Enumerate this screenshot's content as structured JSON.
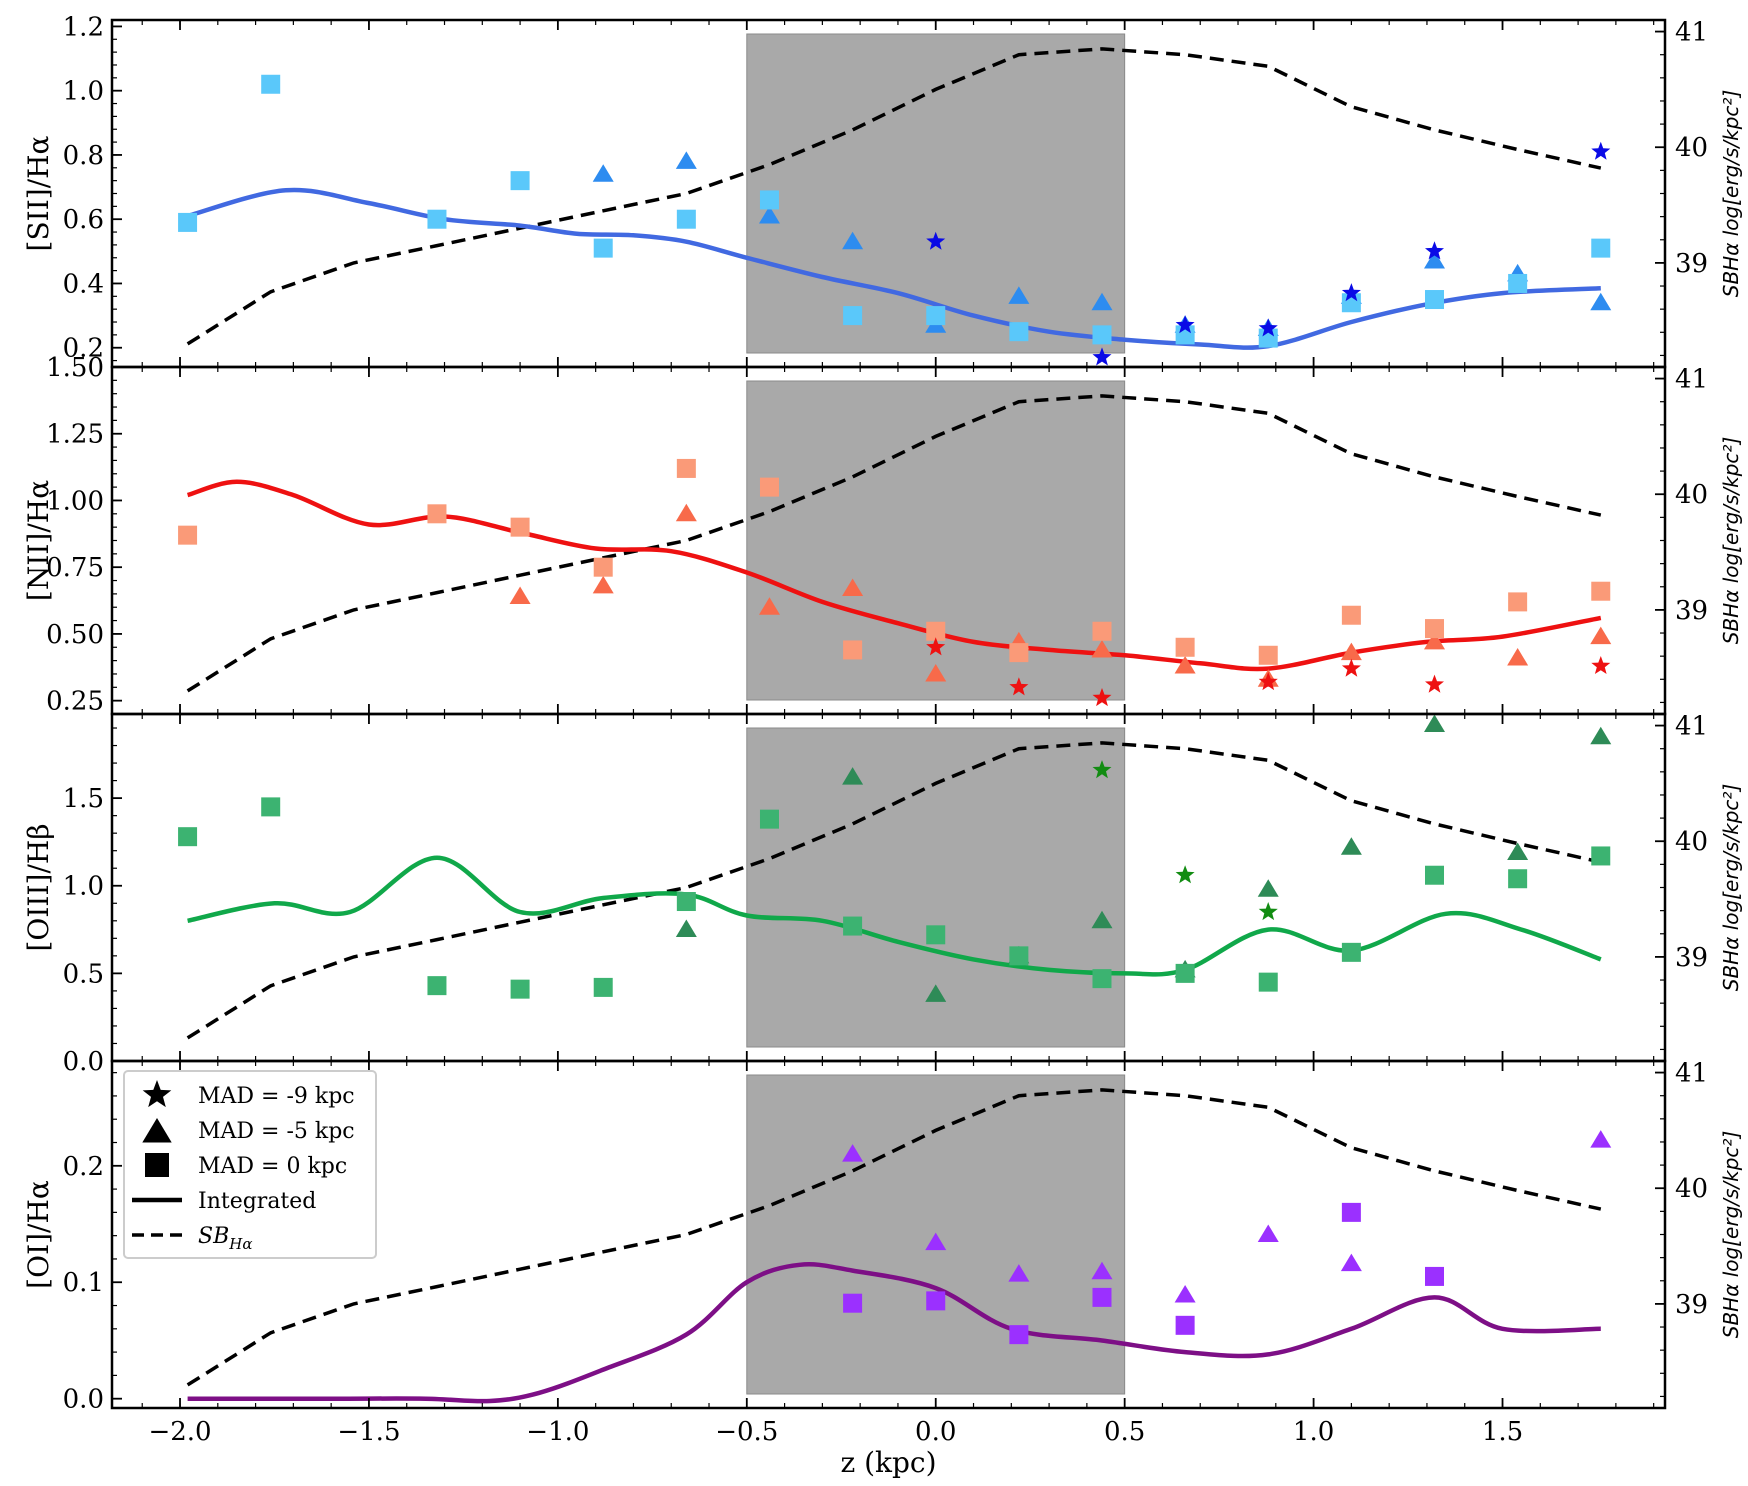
{
  "chart_data": {
    "type": "scatter",
    "xlabel": "z (kpc)",
    "xlim": [
      -2.18,
      1.93
    ],
    "x_ticks": [
      "−2.0",
      "−1.5",
      "−1.0",
      "−0.5",
      "0.0",
      "0.5",
      "1.0",
      "1.5"
    ],
    "x_tick_values": [
      -2.0,
      -1.5,
      -1.0,
      -0.5,
      0.0,
      0.5,
      1.0,
      1.5
    ],
    "shaded_region": [
      -0.5,
      0.5
    ],
    "right_axis": {
      "label": "SBHα log[erg/s/kpc²]",
      "ylim": [
        38.1,
        41.1
      ],
      "ticks": [
        "41",
        "40",
        "39"
      ],
      "tick_values": [
        41,
        40,
        39
      ]
    },
    "sb_halpha": {
      "x": [
        -1.98,
        -1.76,
        -1.54,
        -1.32,
        -1.1,
        -0.88,
        -0.66,
        -0.44,
        -0.22,
        0.0,
        0.22,
        0.44,
        0.66,
        0.88,
        1.1,
        1.32,
        1.54,
        1.76
      ],
      "y": [
        38.3,
        38.75,
        39.0,
        39.15,
        39.3,
        39.45,
        39.6,
        39.85,
        40.15,
        40.5,
        40.8,
        40.85,
        40.8,
        40.7,
        40.35,
        40.15,
        39.98,
        39.82
      ]
    },
    "legend": {
      "entries": [
        "MAD = -9 kpc",
        "MAD = -5 kpc",
        "MAD = 0 kpc",
        "Integrated",
        "SB"
      ],
      "entries_sub": [
        "",
        "",
        "",
        "",
        "Hα"
      ]
    },
    "panels": [
      {
        "ylabel": "[SII]/Hα",
        "ylim": [
          0.14,
          1.22
        ],
        "y_ticks": [
          "0.2",
          "0.4",
          "0.6",
          "0.8",
          "1.0",
          "1.2"
        ],
        "y_tick_values": [
          0.2,
          0.4,
          0.6,
          0.8,
          1.0,
          1.2
        ],
        "color_line": "#4169e1",
        "color_square": "#5ac8fa",
        "color_triangle": "#2d8cf0",
        "color_star": "#0a0ae6",
        "integrated": {
          "x": [
            -1.98,
            -1.72,
            -1.5,
            -1.3,
            -1.1,
            -0.95,
            -0.8,
            -0.66,
            -0.5,
            -0.3,
            -0.1,
            0.1,
            0.3,
            0.5,
            0.7,
            0.88,
            1.1,
            1.3,
            1.5,
            1.76
          ],
          "y": [
            0.61,
            0.69,
            0.65,
            0.6,
            0.58,
            0.555,
            0.55,
            0.53,
            0.48,
            0.42,
            0.37,
            0.3,
            0.25,
            0.225,
            0.21,
            0.205,
            0.28,
            0.335,
            0.37,
            0.385
          ]
        },
        "mad0_squares": {
          "x": [
            -1.98,
            -1.76,
            -1.32,
            -1.1,
            -0.88,
            -0.66,
            -0.44,
            -0.22,
            0.0,
            0.22,
            0.44,
            0.66,
            0.88,
            1.1,
            1.32,
            1.54,
            1.76
          ],
          "y": [
            0.59,
            1.02,
            0.6,
            0.72,
            0.51,
            0.6,
            0.66,
            0.3,
            0.3,
            0.25,
            0.24,
            0.24,
            0.23,
            0.34,
            0.35,
            0.4,
            0.51
          ]
        },
        "mad5_triangles": {
          "x": [
            -0.88,
            -0.66,
            -0.44,
            -0.22,
            0.0,
            0.22,
            0.44,
            0.66,
            0.88,
            1.1,
            1.32,
            1.54,
            1.76
          ],
          "y": [
            0.74,
            0.78,
            0.61,
            0.53,
            0.27,
            0.36,
            0.34,
            0.27,
            0.26,
            0.36,
            0.47,
            0.43,
            0.34
          ]
        },
        "mad9_stars": {
          "x": [
            0.0,
            0.44,
            0.66,
            0.88,
            1.1,
            1.32,
            1.76
          ],
          "y": [
            0.53,
            0.17,
            0.27,
            0.26,
            0.37,
            0.5,
            0.81
          ]
        }
      },
      {
        "ylabel": "[NII]/Hα",
        "ylim": [
          0.2,
          1.5
        ],
        "y_ticks": [
          "0.25",
          "0.50",
          "0.75",
          "1.00",
          "1.25",
          "1.50"
        ],
        "y_tick_values": [
          0.25,
          0.5,
          0.75,
          1.0,
          1.25,
          1.5
        ],
        "color_line": "#ee1111",
        "color_square": "#fa9a78",
        "color_triangle": "#f86a4a",
        "color_star": "#ee1111",
        "integrated": {
          "x": [
            -1.98,
            -1.85,
            -1.7,
            -1.5,
            -1.3,
            -1.1,
            -0.9,
            -0.7,
            -0.5,
            -0.3,
            -0.1,
            0.1,
            0.3,
            0.5,
            0.7,
            0.88,
            1.1,
            1.3,
            1.5,
            1.76
          ],
          "y": [
            1.02,
            1.07,
            1.02,
            0.91,
            0.94,
            0.88,
            0.82,
            0.81,
            0.73,
            0.62,
            0.54,
            0.47,
            0.44,
            0.42,
            0.39,
            0.37,
            0.43,
            0.47,
            0.49,
            0.56
          ]
        },
        "mad0_squares": {
          "x": [
            -1.98,
            -1.32,
            -1.1,
            -0.88,
            -0.66,
            -0.44,
            -0.22,
            0.0,
            0.22,
            0.44,
            0.66,
            0.88,
            1.1,
            1.32,
            1.54,
            1.76
          ],
          "y": [
            0.87,
            0.95,
            0.9,
            0.75,
            1.12,
            1.05,
            0.44,
            0.51,
            0.43,
            0.51,
            0.45,
            0.42,
            0.57,
            0.52,
            0.62,
            0.66
          ]
        },
        "mad5_triangles": {
          "x": [
            -1.1,
            -0.88,
            -0.66,
            -0.44,
            -0.22,
            0.0,
            0.22,
            0.44,
            0.66,
            0.88,
            1.1,
            1.32,
            1.54,
            1.76
          ],
          "y": [
            0.64,
            0.68,
            0.95,
            0.6,
            0.67,
            0.35,
            0.47,
            0.44,
            0.38,
            0.33,
            0.43,
            0.47,
            0.41,
            0.49
          ]
        },
        "mad9_stars": {
          "x": [
            0.0,
            0.22,
            0.44,
            0.88,
            1.1,
            1.32,
            1.76
          ],
          "y": [
            0.45,
            0.3,
            0.26,
            0.32,
            0.37,
            0.31,
            0.38
          ]
        }
      },
      {
        "ylabel": "[OIII]/Hβ",
        "ylim": [
          0.0,
          1.98
        ],
        "y_ticks": [
          "0.0",
          "0.5",
          "1.0",
          "1.5"
        ],
        "y_tick_values": [
          0.0,
          0.5,
          1.0,
          1.5
        ],
        "color_line": "#10a84a",
        "color_square": "#3cb371",
        "color_triangle": "#2e8b57",
        "color_star": "#128c12",
        "integrated": {
          "x": [
            -1.98,
            -1.75,
            -1.55,
            -1.32,
            -1.1,
            -0.88,
            -0.66,
            -0.5,
            -0.3,
            -0.1,
            0.1,
            0.3,
            0.5,
            0.66,
            0.88,
            1.1,
            1.35,
            1.55,
            1.76
          ],
          "y": [
            0.8,
            0.9,
            0.85,
            1.16,
            0.85,
            0.93,
            0.95,
            0.83,
            0.8,
            0.68,
            0.58,
            0.52,
            0.5,
            0.52,
            0.75,
            0.63,
            0.84,
            0.75,
            0.58
          ]
        },
        "mad0_squares": {
          "x": [
            -1.98,
            -1.76,
            -1.32,
            -1.1,
            -0.88,
            -0.66,
            -0.44,
            -0.22,
            0.0,
            0.22,
            0.44,
            0.66,
            0.88,
            1.1,
            1.32,
            1.54,
            1.76
          ],
          "y": [
            1.28,
            1.45,
            0.43,
            0.41,
            0.42,
            0.91,
            1.38,
            0.77,
            0.72,
            0.6,
            0.47,
            0.5,
            0.45,
            0.62,
            1.06,
            1.04,
            1.17
          ]
        },
        "mad5_triangles": {
          "x": [
            -0.66,
            -0.22,
            0.0,
            0.22,
            0.44,
            0.66,
            0.88,
            1.1,
            1.32,
            1.54,
            1.76
          ],
          "y": [
            0.75,
            1.62,
            0.38,
            0.6,
            0.8,
            0.52,
            0.98,
            1.22,
            1.92,
            1.19,
            1.85
          ]
        },
        "mad9_stars": {
          "x": [
            0.44,
            0.66,
            0.88
          ],
          "y": [
            1.66,
            1.06,
            0.85
          ]
        }
      },
      {
        "ylabel": "[OI]/Hα",
        "ylim": [
          -0.008,
          0.29
        ],
        "y_ticks": [
          "0.0",
          "0.1",
          "0.2"
        ],
        "y_tick_values": [
          0.0,
          0.1,
          0.2
        ],
        "color_line": "#7d0f86",
        "color_square": "#9b30ff",
        "color_triangle": "#9b30ff",
        "color_star": "#7d0f86",
        "integrated": {
          "x": [
            -1.98,
            -1.6,
            -1.35,
            -1.18,
            -1.05,
            -0.88,
            -0.66,
            -0.5,
            -0.36,
            -0.22,
            0.0,
            0.2,
            0.44,
            0.66,
            0.88,
            1.1,
            1.32,
            1.5,
            1.76
          ],
          "y": [
            0.0,
            0.0,
            0.0,
            -0.002,
            0.005,
            0.025,
            0.055,
            0.1,
            0.115,
            0.11,
            0.095,
            0.06,
            0.05,
            0.04,
            0.038,
            0.06,
            0.087,
            0.06,
            0.06
          ]
        },
        "mad0_squares": {
          "x": [
            -0.22,
            0.0,
            0.22,
            0.44,
            0.66,
            1.1,
            1.32
          ],
          "y": [
            0.082,
            0.084,
            0.055,
            0.087,
            0.063,
            0.16,
            0.105
          ]
        },
        "mad5_triangles": {
          "x": [
            -0.22,
            0.0,
            0.22,
            0.44,
            0.66,
            0.88,
            1.1,
            1.76
          ],
          "y": [
            0.21,
            0.134,
            0.107,
            0.109,
            0.089,
            0.141,
            0.116,
            0.222
          ]
        },
        "mad9_stars": {
          "x": [],
          "y": []
        }
      }
    ]
  }
}
